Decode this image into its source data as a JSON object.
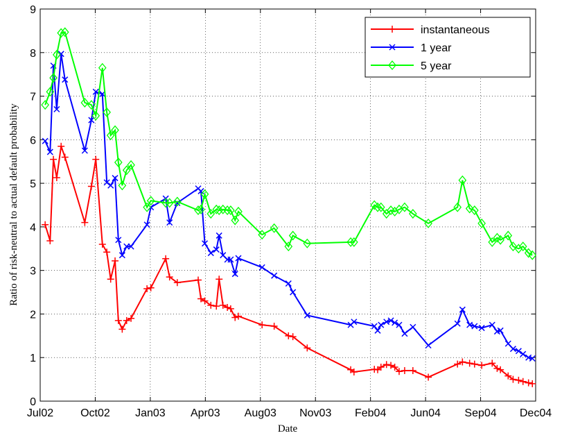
{
  "chart_data": {
    "type": "line",
    "xlabel": "Date",
    "ylabel": "Ratio of risk-neutral to actual default probability",
    "x": [
      0.09,
      0.18,
      0.24,
      0.3,
      0.38,
      0.45,
      0.81,
      0.93,
      1.01,
      1.13,
      1.21,
      1.28,
      1.36,
      1.42,
      1.49,
      1.57,
      1.65,
      1.94,
      2.01,
      2.28,
      2.35,
      2.49,
      2.87,
      2.92,
      2.99,
      3.1,
      3.2,
      3.25,
      3.32,
      3.4,
      3.46,
      3.54,
      3.6,
      4.03,
      4.25,
      4.51,
      4.59,
      4.85,
      5.64,
      5.7,
      6.07,
      6.13,
      6.19,
      6.29,
      6.37,
      6.44,
      6.52,
      6.62,
      6.77,
      7.05,
      7.58,
      7.67,
      7.8,
      7.89,
      8.02,
      8.21,
      8.3,
      8.36,
      8.5,
      8.59,
      8.69,
      8.77,
      8.87,
      8.94
    ],
    "series": [
      {
        "name": "instantaneous",
        "color": "#ff0000",
        "marker": "plus",
        "values": [
          4.05,
          3.68,
          5.55,
          5.13,
          5.85,
          5.6,
          4.1,
          4.93,
          5.55,
          3.6,
          3.42,
          2.8,
          3.22,
          1.85,
          1.65,
          1.85,
          1.9,
          2.58,
          2.6,
          3.27,
          2.85,
          2.72,
          2.78,
          2.35,
          2.3,
          2.2,
          2.18,
          2.8,
          2.2,
          2.15,
          2.12,
          1.92,
          1.95,
          1.75,
          1.72,
          1.5,
          1.48,
          1.22,
          0.72,
          0.67,
          0.73,
          0.72,
          0.78,
          0.84,
          0.82,
          0.78,
          0.68,
          0.7,
          0.7,
          0.55,
          0.85,
          0.9,
          0.87,
          0.85,
          0.82,
          0.87,
          0.75,
          0.72,
          0.58,
          0.5,
          0.48,
          0.45,
          0.42,
          0.4
        ]
      },
      {
        "name": "1 year",
        "color": "#0000ff",
        "marker": "x",
        "values": [
          5.97,
          5.72,
          7.7,
          6.7,
          7.97,
          7.38,
          5.75,
          6.45,
          7.1,
          7.05,
          5.02,
          4.95,
          5.12,
          3.7,
          3.35,
          3.55,
          3.55,
          4.05,
          4.45,
          4.65,
          4.1,
          4.55,
          4.88,
          4.82,
          3.62,
          3.4,
          3.48,
          3.8,
          3.35,
          3.25,
          3.25,
          2.92,
          3.28,
          3.07,
          2.88,
          2.7,
          2.5,
          1.97,
          1.75,
          1.82,
          1.72,
          1.62,
          1.75,
          1.82,
          1.85,
          1.8,
          1.75,
          1.55,
          1.7,
          1.28,
          1.78,
          2.1,
          1.75,
          1.72,
          1.68,
          1.75,
          1.6,
          1.62,
          1.32,
          1.2,
          1.15,
          1.08,
          1.0,
          0.98
        ]
      },
      {
        "name": "5 year",
        "color": "#00ff00",
        "marker": "diamond",
        "values": [
          6.8,
          7.1,
          7.42,
          7.95,
          8.45,
          8.47,
          6.85,
          6.8,
          6.55,
          7.65,
          6.63,
          6.1,
          6.22,
          5.48,
          4.95,
          5.3,
          5.42,
          4.45,
          4.6,
          4.55,
          4.55,
          4.58,
          4.38,
          4.4,
          4.75,
          4.3,
          4.4,
          4.38,
          4.4,
          4.38,
          4.38,
          4.15,
          4.35,
          3.82,
          3.97,
          3.55,
          3.8,
          3.62,
          3.65,
          3.65,
          4.5,
          4.45,
          4.45,
          4.3,
          4.38,
          4.35,
          4.4,
          4.45,
          4.3,
          4.08,
          4.45,
          5.07,
          4.42,
          4.38,
          4.08,
          3.65,
          3.75,
          3.7,
          3.8,
          3.55,
          3.5,
          3.55,
          3.4,
          3.35
        ]
      }
    ],
    "xlim": [
      0,
      9
    ],
    "xticks": [
      {
        "value": 0,
        "label": "Jul02"
      },
      {
        "value": 1,
        "label": "Oct02"
      },
      {
        "value": 2,
        "label": "Jan03"
      },
      {
        "value": 3,
        "label": "Apr03"
      },
      {
        "value": 4,
        "label": "Aug03"
      },
      {
        "value": 5,
        "label": "Nov03"
      },
      {
        "value": 6,
        "label": "Feb04"
      },
      {
        "value": 7,
        "label": "Jun04"
      },
      {
        "value": 8,
        "label": "Sep04"
      },
      {
        "value": 9,
        "label": "Dec04"
      }
    ],
    "ylim": [
      0,
      9
    ],
    "yticks": [
      0,
      1,
      2,
      3,
      4,
      5,
      6,
      7,
      8,
      9
    ],
    "grid": true,
    "legend": "upper right"
  }
}
